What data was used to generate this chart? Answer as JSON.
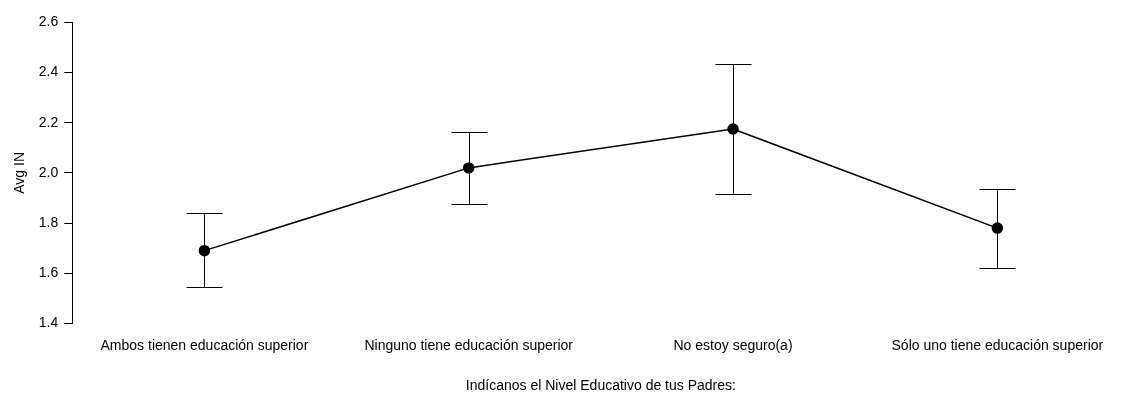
{
  "chart_data": {
    "type": "line",
    "xlabel": "Indícanos el Nivel Educativo de tus Padres:",
    "ylabel": "Avg IN",
    "categories": [
      "Ambos tienen educación superior",
      "Ninguno tiene educación superior",
      "No estoy seguro(a)",
      "Sólo uno tiene educación superior"
    ],
    "color": "#000000",
    "values": [
      1.69,
      2.02,
      2.175,
      1.78
    ],
    "errors": [
      [
        1.545,
        1.84
      ],
      [
        1.875,
        2.165
      ],
      [
        1.915,
        2.435
      ],
      [
        1.62,
        1.935
      ]
    ],
    "ylim": [
      1.4,
      2.6
    ],
    "yticks": [
      {
        "value": 1.4,
        "label": "1.4"
      },
      {
        "value": 1.6,
        "label": "1.6"
      },
      {
        "value": 1.8,
        "label": "1.8"
      },
      {
        "value": 2,
        "label": "2.0"
      },
      {
        "value": 2.2,
        "label": "2.2"
      },
      {
        "value": 2.4,
        "label": "2.4"
      },
      {
        "value": 2.6,
        "label": "2.6"
      }
    ],
    "grid": false,
    "legend": false,
    "marker": "circle",
    "line_style": "solid"
  }
}
